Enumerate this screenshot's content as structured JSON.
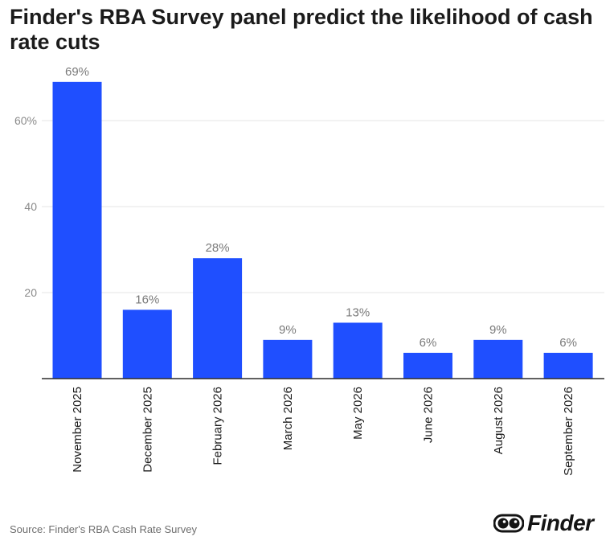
{
  "title": "Finder's RBA Survey panel predict the likelihood of cash rate cuts",
  "source": "Source: Finder's RBA Cash Rate Survey",
  "brand": {
    "logo_text": "Finder",
    "logo_icon": "eyes-icon"
  },
  "colors": {
    "bar": "#1f4fff",
    "grid": "#e6e6e6",
    "axis": "#2b2b2b",
    "tick_text": "#8a8a8a",
    "label_text": "#7a7a7a"
  },
  "chart_data": {
    "type": "bar",
    "title": "Finder's RBA Survey panel predict the likelihood of cash rate cuts",
    "xlabel": "",
    "ylabel": "",
    "categories": [
      "November 2025",
      "December 2025",
      "February 2026",
      "March 2026",
      "May 2026",
      "June 2026",
      "August 2026",
      "September 2026"
    ],
    "values": [
      69,
      16,
      28,
      9,
      13,
      6,
      9,
      6
    ],
    "data_labels": [
      "69%",
      "16%",
      "28%",
      "9%",
      "13%",
      "6%",
      "9%",
      "6%"
    ],
    "yticks": [
      {
        "value": 20,
        "label": "20"
      },
      {
        "value": 40,
        "label": "40"
      },
      {
        "value": 60,
        "label": "60%"
      }
    ],
    "ylim": [
      0,
      70
    ],
    "grid": true,
    "legend": "none"
  }
}
